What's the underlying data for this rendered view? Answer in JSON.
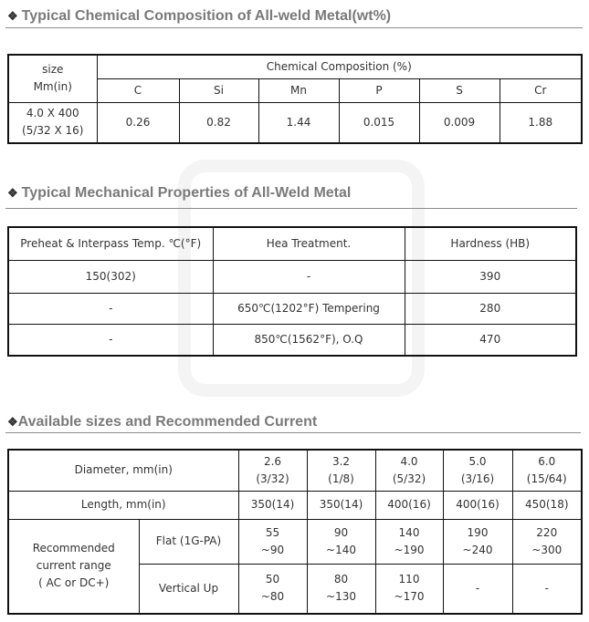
{
  "section1": {
    "title": "Typical Chemical Composition of All-weld Metal(wt%)",
    "bullet_icon": "diamond-bullet-icon",
    "size_header_line1": "size",
    "size_header_line2": "Mm(in)",
    "group_header": "Chemical Composition (%)",
    "elements": [
      "C",
      "Si",
      "Mn",
      "P",
      "S",
      "Cr"
    ],
    "row": {
      "size_line1": "4.0 X 400",
      "size_line2": "(5/32 X 16)",
      "values": [
        "0.26",
        "0.82",
        "1.44",
        "0.015",
        "0.009",
        "1.88"
      ]
    }
  },
  "section2": {
    "title": "Typical Mechanical Properties of All-Weld Metal",
    "headers": [
      "Preheat & Interpass Temp. ℃(°F)",
      "Hea Treatment.",
      "Hardness (HB)"
    ],
    "rows": [
      [
        "150(302)",
        "-",
        "390"
      ],
      [
        "-",
        "650℃(1202°F) Tempering",
        "280"
      ],
      [
        "-",
        "850℃(1562°F), O.Q",
        "470"
      ]
    ]
  },
  "section3": {
    "title": "Available sizes and Recommended Current",
    "diameter_label": "Diameter, mm(in)",
    "diameters": [
      [
        "2.6",
        "(3/32)"
      ],
      [
        "3.2",
        "(1/8)"
      ],
      [
        "4.0",
        "(5/32)"
      ],
      [
        "5.0",
        "(3/16)"
      ],
      [
        "6.0",
        "(15/64)"
      ]
    ],
    "length_label": "Length, mm(in)",
    "lengths": [
      "350(14)",
      "350(14)",
      "400(16)",
      "400(16)",
      "450(18)"
    ],
    "current_label": [
      "Recommended",
      "current range",
      "( AC or DC+)"
    ],
    "flat_label": "Flat (1G-PA)",
    "flat": [
      [
        "55",
        "~90"
      ],
      [
        "90",
        "~140"
      ],
      [
        "140",
        "~190"
      ],
      [
        "190",
        "~240"
      ],
      [
        "220",
        "~300"
      ]
    ],
    "vertical_label": "Vertical Up",
    "vertical": [
      [
        "50",
        "~80"
      ],
      [
        "80",
        "~130"
      ],
      [
        "110",
        "~170"
      ],
      [
        "-",
        ""
      ],
      [
        "-",
        ""
      ]
    ]
  }
}
